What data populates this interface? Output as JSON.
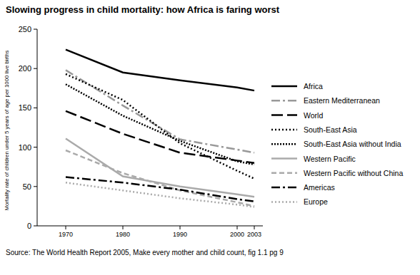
{
  "chart_data": {
    "type": "line",
    "title": "Slowing progress in child mortality: how Africa is faring worst",
    "y_label": "Mortality rate of children under 5 years of age per 1000 live births",
    "source": "Source: The World Health Report 2005, Make every mother and child count, fig 1.1 pg 9",
    "x": [
      1970,
      1980,
      1990,
      2000,
      2003
    ],
    "xlim": [
      1965,
      2004.5
    ],
    "xticks": [
      1970,
      1980,
      1990,
      2000,
      2003
    ],
    "ylim": [
      0,
      250
    ],
    "yticks": [
      0,
      50,
      100,
      150,
      200,
      250
    ],
    "grid": false,
    "legend": "right",
    "series": [
      {
        "name": "Africa",
        "color": "#000000",
        "line_style": "solid",
        "values": [
          224,
          195,
          185,
          176,
          172
        ]
      },
      {
        "name": "Eastern Mediterranean",
        "color": "#999999",
        "line_style": "dashdot",
        "values": [
          198,
          153,
          110,
          97,
          93
        ]
      },
      {
        "name": "World",
        "color": "#000000",
        "line_style": "longdash",
        "values": [
          146,
          117,
          93,
          83,
          80
        ]
      },
      {
        "name": "South-East Asia",
        "color": "#000000",
        "line_style": "dotted",
        "values": [
          193,
          160,
          105,
          70,
          60
        ]
      },
      {
        "name": "South-East Asia without India",
        "color": "#000000",
        "line_style": "densedotted",
        "values": [
          180,
          140,
          108,
          82,
          78
        ]
      },
      {
        "name": "Western Pacific",
        "color": "#aaaaaa",
        "line_style": "solid",
        "values": [
          111,
          63,
          50,
          40,
          37
        ]
      },
      {
        "name": "Western Pacific without China",
        "color": "#aaaaaa",
        "line_style": "dashed",
        "values": [
          96,
          67,
          45,
          30,
          25
        ]
      },
      {
        "name": "Americas",
        "color": "#000000",
        "line_style": "dashdot",
        "values": [
          62,
          55,
          46,
          34,
          31
        ]
      },
      {
        "name": "Europe",
        "color": "#aaaaaa",
        "line_style": "dotted",
        "values": [
          55,
          45,
          35,
          27,
          24
        ]
      }
    ]
  }
}
